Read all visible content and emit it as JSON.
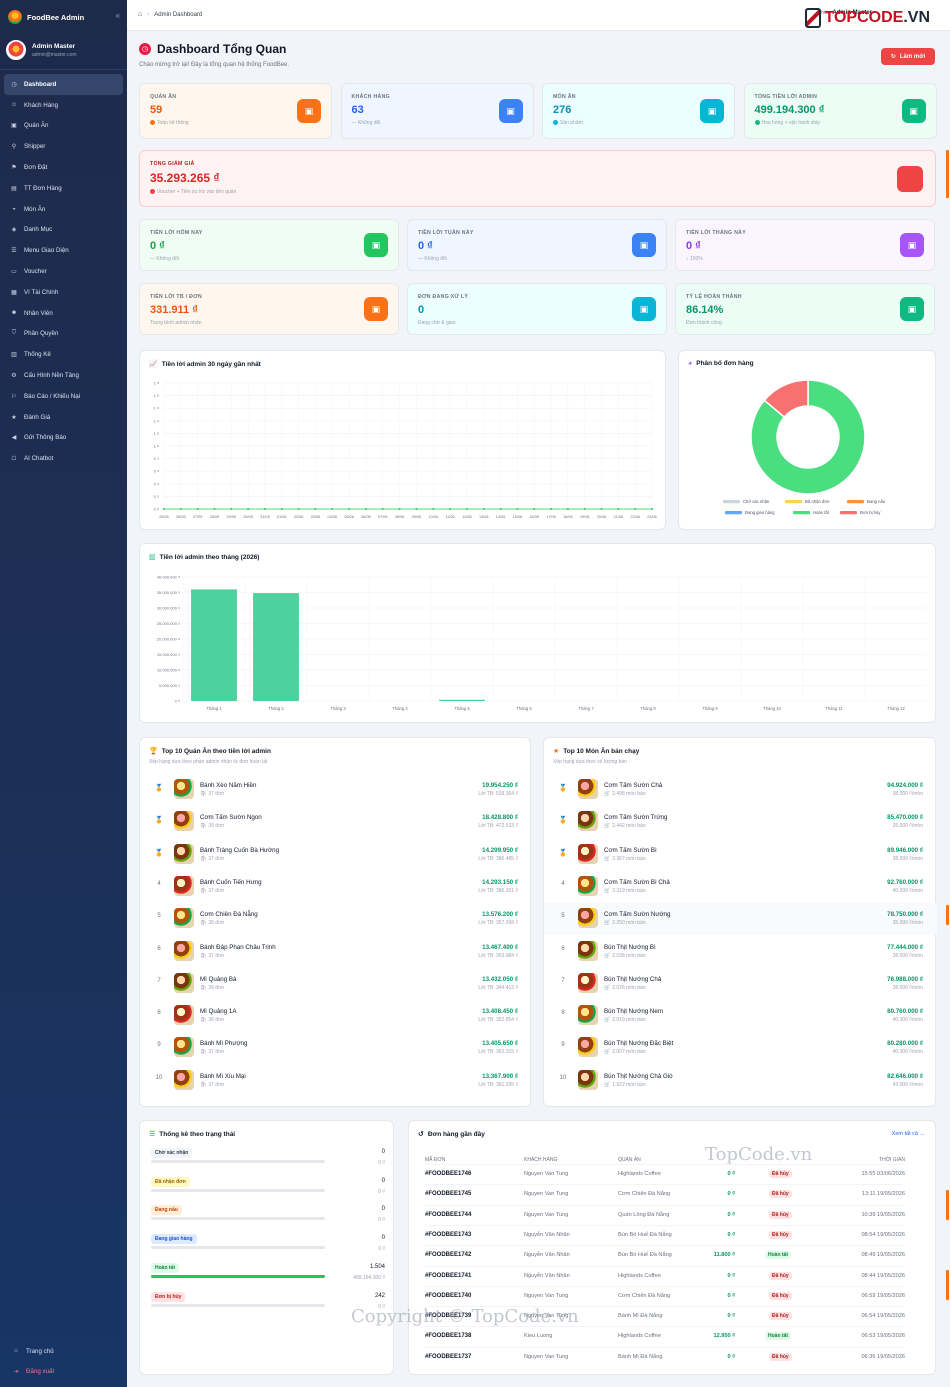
{
  "sidebar": {
    "brand": "FoodBee Admin",
    "collapse_icon": "«",
    "user": {
      "name": "Admin Master",
      "email": "admin@master.com"
    },
    "items": [
      {
        "label": "Dashboard",
        "icon": "gauge-icon",
        "active": true
      },
      {
        "label": "Khách Hàng",
        "icon": "users-icon"
      },
      {
        "label": "Quán Ăn",
        "icon": "store-icon"
      },
      {
        "label": "Shipper",
        "icon": "motorbike-icon"
      },
      {
        "label": "Đơn Đặt",
        "icon": "cart-icon"
      },
      {
        "label": "TT Đơn Hàng",
        "icon": "file-icon"
      },
      {
        "label": "Món Ăn",
        "icon": "bowl-icon"
      },
      {
        "label": "Danh Mục",
        "icon": "layers-icon"
      },
      {
        "label": "Menu Giao Diện",
        "icon": "menu-icon"
      },
      {
        "label": "Voucher",
        "icon": "ticket-icon"
      },
      {
        "label": "Ví Tài Chính",
        "icon": "wallet-icon"
      },
      {
        "label": "Nhân Viên",
        "icon": "user-icon"
      },
      {
        "label": "Phân Quyền",
        "icon": "shield-icon"
      },
      {
        "label": "Thống Kê",
        "icon": "chart-icon"
      },
      {
        "label": "Cấu Hình Nền Tảng",
        "icon": "gears-icon"
      },
      {
        "label": "Báo Cáo / Khiếu Nại",
        "icon": "flag-icon"
      },
      {
        "label": "Đánh Giá",
        "icon": "star-icon"
      },
      {
        "label": "Gửi Thông Báo",
        "icon": "megaphone-icon"
      },
      {
        "label": "AI Chatbot",
        "icon": "robot-icon"
      }
    ],
    "home": "Trang chủ",
    "logout": "Đăng xuất"
  },
  "topbar": {
    "breadcrumb": "Admin Dashboard",
    "user_greeting": "Xin chào,",
    "user_name": "Admin Master",
    "watermark_logo_a": "TOPCODE",
    "watermark_logo_b": ".VN"
  },
  "header": {
    "title": "Dashboard Tổng Quan",
    "subtitle": "Chào mừng trở lại! Đây là tổng quan hệ thống FoodBee.",
    "refresh": "Làm mới"
  },
  "stats_top": [
    {
      "label": "Quán Ăn",
      "value": "59",
      "sub": "Toàn hệ thống",
      "color": "#ea580c",
      "bg": "#fff7ed",
      "icon_bg": "#f97316",
      "dot": "#f97316",
      "icon": "store-icon"
    },
    {
      "label": "Khách Hàng",
      "value": "63",
      "sub": "— Không đổi",
      "color": "#2563eb",
      "bg": "#eff6ff",
      "icon_bg": "#3b82f6",
      "dot": "",
      "icon": "users-icon"
    },
    {
      "label": "Món Ăn",
      "value": "276",
      "sub": "Sản phẩm",
      "color": "#0891b2",
      "bg": "#ecfeff",
      "icon_bg": "#06b6d4",
      "dot": "#06b6d4",
      "icon": "bowl-icon"
    },
    {
      "label": "Tổng Tiền Lời Admin",
      "value": "499.194.300 ₫",
      "sub": "Hoa hồng + vận hành ship",
      "color": "#059669",
      "bg": "#ecfdf5",
      "icon_bg": "#10b981",
      "dot": "#10b981",
      "icon": "money-bag-icon"
    }
  ],
  "discount": {
    "label": "Tổng Giảm Giá",
    "value": "35.293.265 ₫",
    "sub": "Voucher + Tiền xu trừ vào tiền quán"
  },
  "profit_cards": [
    {
      "label": "Tiền Lời Hôm Nay",
      "value": "0 ₫",
      "sub": "— Không đổi",
      "color": "#16a34a",
      "bg": "#f0fdf4",
      "icon_bg": "#22c55e",
      "icon": "calendar-icon"
    },
    {
      "label": "Tiền Lời Tuần Này",
      "value": "0 ₫",
      "sub": "— Không đổi",
      "color": "#2563eb",
      "bg": "#eff6ff",
      "icon_bg": "#3b82f6",
      "icon": "calendar-week-icon"
    },
    {
      "label": "Tiền Lời Tháng Này",
      "value": "0 ₫",
      "sub": "↓ 100%",
      "color": "#9333ea",
      "bg": "#faf5ff",
      "icon_bg": "#a855f7",
      "icon": "calendar-month-icon"
    },
    {
      "label": "Tiền Lời TB / Đơn",
      "value": "331.911 ₫",
      "sub": "Trung bình admin nhận",
      "color": "#ea580c",
      "bg": "#fff7ed",
      "icon_bg": "#f97316",
      "icon": "receipt-icon"
    },
    {
      "label": "Đơn Đang Xử Lý",
      "value": "0",
      "sub": "Đang chờ & giao",
      "color": "#0891b2",
      "bg": "#ecfeff",
      "icon_bg": "#06b6d4",
      "icon": "hourglass-icon"
    },
    {
      "label": "Tỷ Lệ Hoàn Thành",
      "value": "86.14%",
      "sub": "Đơn thành công",
      "color": "#059669",
      "bg": "#ecfdf5",
      "icon_bg": "#10b981",
      "icon": "check-circle-icon"
    }
  ],
  "chart_daily": {
    "title": "Tiền lời admin 30 ngày gần nhất",
    "yticks": [
      "1 ₫",
      "1 ₫",
      "1 ₫",
      "1 ₫",
      "1 ₫",
      "1 ₫",
      "0 ₫",
      "0 ₫",
      "0 ₫",
      "0 ₫",
      "0 ₫"
    ],
    "x": [
      "25/05",
      "26/05",
      "27/05",
      "28/05",
      "29/05",
      "30/05",
      "31/05",
      "01/06",
      "02/06",
      "03/06",
      "04/06",
      "05/06",
      "06/06",
      "07/06",
      "08/06",
      "09/06",
      "10/06",
      "11/06",
      "12/06",
      "13/06",
      "14/06",
      "15/06",
      "16/06",
      "17/06",
      "18/06",
      "19/06",
      "20/06",
      "21/06",
      "22/06",
      "23/06"
    ]
  },
  "chart_data": [
    {
      "type": "line",
      "title": "Tiền lời admin 30 ngày gần nhất",
      "x": [
        "25/05",
        "26/05",
        "27/05",
        "28/05",
        "29/05",
        "30/05",
        "31/05",
        "01/06",
        "02/06",
        "03/06",
        "04/06",
        "05/06",
        "06/06",
        "07/06",
        "08/06",
        "09/06",
        "10/06",
        "11/06",
        "12/06",
        "13/06",
        "14/06",
        "15/06",
        "16/06",
        "17/06",
        "18/06",
        "19/06",
        "20/06",
        "21/06",
        "22/06",
        "23/06"
      ],
      "values": [
        0,
        0,
        0,
        0,
        0,
        0,
        0,
        0,
        0,
        0,
        0,
        0,
        0,
        0,
        0,
        0,
        0,
        0,
        0,
        0,
        0,
        0,
        0,
        0,
        0,
        0,
        0,
        0,
        0,
        0
      ],
      "ylim": [
        0,
        1
      ],
      "grid": true
    },
    {
      "type": "pie",
      "title": "Phân bố đơn hàng",
      "labels": [
        "Chờ xác nhận",
        "Đã nhận đơn",
        "Đang nấu",
        "Đang giao hàng",
        "Hoàn tất",
        "Đơn bị hủy"
      ],
      "values": [
        0,
        0,
        0,
        0,
        1504,
        242
      ],
      "colors": [
        "#cbd5e1",
        "#fcd34d",
        "#fb923c",
        "#60a5fa",
        "#4ade80",
        "#f87171"
      ],
      "legend": "bottom"
    },
    {
      "type": "bar",
      "title": "Tiền lời admin theo tháng (2026)",
      "categories": [
        "Tháng 1",
        "Tháng 2",
        "Tháng 3",
        "Tháng 4",
        "Tháng 5",
        "Tháng 6",
        "Tháng 7",
        "Tháng 8",
        "Tháng 9",
        "Tháng 10",
        "Tháng 11",
        "Tháng 12"
      ],
      "values": [
        36000000,
        34800000,
        0,
        0,
        400000,
        0,
        0,
        0,
        0,
        0,
        0,
        0
      ],
      "ylim": [
        0,
        40000000
      ],
      "yticks": [
        "0 ₫",
        "5.000.000 ₫",
        "10.000.000 ₫",
        "15.000.000 ₫",
        "20.000.000 ₫",
        "25.000.000 ₫",
        "30.000.000 ₫",
        "35.000.000 ₫",
        "40.000.000 ₫"
      ],
      "color": "#4ed19e",
      "grid": true
    }
  ],
  "pie": {
    "title": "Phân bố đơn hàng"
  },
  "monthly": {
    "title": "Tiền lời admin theo tháng (2026)"
  },
  "top_shops": {
    "title": "Top 10 Quán Ăn theo tiền lời admin",
    "subtitle": "Xếp hạng dựa theo phần admin nhận từ đơn hoàn tất",
    "items": [
      {
        "rank": "1",
        "name": "Bánh Xèo Năm Hiền",
        "meta": "37 đơn",
        "value": "19.954.250 ₫",
        "sub": "Lời TB: 539.304 ₫"
      },
      {
        "rank": "2",
        "name": "Cơm Tấm Sườn Ngon",
        "meta": "39 đơn",
        "value": "18.428.800 ₫",
        "sub": "Lời TB: 472.533 ₫"
      },
      {
        "rank": "3",
        "name": "Bánh Tráng Cuốn Bà Hường",
        "meta": "37 đơn",
        "value": "14.299.950 ₫",
        "sub": "Lời TB: 386.485 ₫"
      },
      {
        "rank": "4",
        "name": "Bánh Cuốn Tiến Hưng",
        "meta": "37 đơn",
        "value": "14.293.150 ₫",
        "sub": "Lời TB: 386.301 ₫"
      },
      {
        "rank": "5",
        "name": "Cơm Chiên Đà Nẵng",
        "meta": "38 đơn",
        "value": "13.576.200 ₫",
        "sub": "Lời TB: 357.268 ₫"
      },
      {
        "rank": "6",
        "name": "Bánh Đập Phan Châu Trinh",
        "meta": "37 đơn",
        "value": "13.467.400 ₫",
        "sub": "Lời TB: 363.984 ₫"
      },
      {
        "rank": "7",
        "name": "Mì Quảng Bà",
        "meta": "39 đơn",
        "value": "13.432.050 ₫",
        "sub": "Lời TB: 344.412 ₫"
      },
      {
        "rank": "8",
        "name": "Mì Quảng 1A",
        "meta": "38 đơn",
        "value": "13.408.450 ₫",
        "sub": "Lời TB: 352.854 ₫"
      },
      {
        "rank": "9",
        "name": "Bánh Mì Phượng",
        "meta": "37 đơn",
        "value": "13.405.650 ₫",
        "sub": "Lời TB: 362.315 ₫"
      },
      {
        "rank": "10",
        "name": "Bánh Mì Xíu Mại",
        "meta": "37 đơn",
        "value": "13.367.900 ₫",
        "sub": "Lời TB: 361.295 ₫"
      }
    ]
  },
  "top_dishes": {
    "title": "Top 10 Món Ăn bán chạy",
    "subtitle": "Xếp hạng dựa theo số lượng bán",
    "items": [
      {
        "rank": "1",
        "name": "Cơm Tấm Sườn Chả",
        "meta": "2.498 món bán",
        "value": "94.924.000 ₫",
        "sub": "38.000 ₫/món"
      },
      {
        "rank": "2",
        "name": "Cơm Tấm Sườn Trứng",
        "meta": "2.442 món bán",
        "value": "85.470.000 ₫",
        "sub": "35.000 ₫/món"
      },
      {
        "rank": "3",
        "name": "Cơm Tấm Sườn Bì",
        "meta": "2.367 món bán",
        "value": "89.946.000 ₫",
        "sub": "38.000 ₫/món"
      },
      {
        "rank": "4",
        "name": "Cơm Tấm Sườn Bì Chả",
        "meta": "2.319 món bán",
        "value": "92.760.000 ₫",
        "sub": "40.000 ₫/món"
      },
      {
        "rank": "5",
        "name": "Cơm Tấm Sườn Nướng",
        "meta": "2.250 món bán",
        "value": "78.750.000 ₫",
        "sub": "35.000 ₫/món"
      },
      {
        "rank": "6",
        "name": "Bún Thịt Nướng Bì",
        "meta": "2.038 món bán",
        "value": "77.444.000 ₫",
        "sub": "38.000 ₫/món"
      },
      {
        "rank": "7",
        "name": "Bún Thịt Nướng Chả",
        "meta": "2.026 món bán",
        "value": "76.988.000 ₫",
        "sub": "38.000 ₫/món"
      },
      {
        "rank": "8",
        "name": "Bún Thịt Nướng Nem",
        "meta": "2.019 món bán",
        "value": "80.760.000 ₫",
        "sub": "40.000 ₫/món"
      },
      {
        "rank": "9",
        "name": "Bún Thịt Nướng Đặc Biệt",
        "meta": "2.007 món bán",
        "value": "80.280.000 ₫",
        "sub": "40.000 ₫/món"
      },
      {
        "rank": "10",
        "name": "Bún Thịt Nướng Chả Giò",
        "meta": "1.922 món bán",
        "value": "82.646.000 ₫",
        "sub": "43.000 ₫/món"
      }
    ]
  },
  "status_stats": {
    "title": "Thống kê theo trạng thái",
    "items": [
      {
        "label": "Chờ xác nhận",
        "count": "0",
        "amount": "0 ₫",
        "fill": 0,
        "bg": "#f1f5f9",
        "fg": "#334155",
        "bar": "#94a3b8"
      },
      {
        "label": "Đã nhận đơn",
        "count": "0",
        "amount": "0 ₫",
        "fill": 0,
        "bg": "#fef9c3",
        "fg": "#a16207",
        "bar": "#facc15"
      },
      {
        "label": "Đang nấu",
        "count": "0",
        "amount": "0 ₫",
        "fill": 0,
        "bg": "#ffedd5",
        "fg": "#c2410c",
        "bar": "#fb923c"
      },
      {
        "label": "Đang giao hàng",
        "count": "0",
        "amount": "0 ₫",
        "fill": 0,
        "bg": "#dbeafe",
        "fg": "#1d4ed8",
        "bar": "#60a5fa"
      },
      {
        "label": "Hoàn tất",
        "count": "1.504",
        "amount": "499.194.300 ₫",
        "fill": 1,
        "bg": "#dcfce7",
        "fg": "#15803d",
        "bar": "#22c55e"
      },
      {
        "label": "Đơn bị hủy",
        "count": "242",
        "amount": "0 ₫",
        "fill": 0,
        "bg": "#fee2e2",
        "fg": "#b91c1c",
        "bar": "#f87171"
      }
    ]
  },
  "recent_orders": {
    "title": "Đơn hàng gần đây",
    "view_all": "Xem tất cả →",
    "columns": [
      "Mã đơn",
      "Khách hàng",
      "Quán ăn",
      "",
      "",
      "Thời gian"
    ],
    "rows": [
      {
        "code": "#FOODBEE1746",
        "customer": "Nguyen Van Tung",
        "shop": "Highlands Coffee",
        "total": "0 ₫",
        "status": "Đã hủy",
        "time": "15:55 03/06/2026"
      },
      {
        "code": "#FOODBEE1745",
        "customer": "Nguyen Van Tung",
        "shop": "Cơm Chiên Đà Nẵng",
        "total": "0 ₫",
        "status": "Đã hủy",
        "time": "13:11 19/05/2026"
      },
      {
        "code": "#FOODBEE1744",
        "customer": "Nguyen Van Tung",
        "shop": "Quán Lòng Đà Nẵng",
        "total": "0 ₫",
        "status": "Đã hủy",
        "time": "10:39 19/05/2026"
      },
      {
        "code": "#FOODBEE1743",
        "customer": "Nguyễn Văn Nhân",
        "shop": "Bún Bò Huế Đà Nẵng",
        "total": "0 ₫",
        "status": "Đã hủy",
        "time": "08:54 19/05/2026"
      },
      {
        "code": "#FOODBEE1742",
        "customer": "Nguyễn Văn Nhân",
        "shop": "Bún Bò Huế Đà Nẵng",
        "total": "11.800 ₫",
        "status": "Hoàn tất",
        "time": "08:49 19/05/2026"
      },
      {
        "code": "#FOODBEE1741",
        "customer": "Nguyễn Văn Nhân",
        "shop": "Highlands Coffee",
        "total": "0 ₫",
        "status": "Đã hủy",
        "time": "08:44 19/05/2026"
      },
      {
        "code": "#FOODBEE1740",
        "customer": "Nguyen Van Tung",
        "shop": "Cơm Chiên Đà Nẵng",
        "total": "0 ₫",
        "status": "Đã hủy",
        "time": "06:59 19/05/2026"
      },
      {
        "code": "#FOODBEE1739",
        "customer": "Nguyen Van Tung",
        "shop": "Bánh Mì Đà Nẵng",
        "total": "0 ₫",
        "status": "Đã hủy",
        "time": "06:54 19/05/2026"
      },
      {
        "code": "#FOODBEE1738",
        "customer": "Kieu Luong",
        "shop": "Highlands Coffee",
        "total": "12.950 ₫",
        "status": "Hoàn tất",
        "time": "06:53 19/05/2026"
      },
      {
        "code": "#FOODBEE1737",
        "customer": "Nguyen Van Tung",
        "shop": "Bánh Mì Đà Nẵng",
        "total": "0 ₫",
        "status": "Đã hủy",
        "time": "06:35 19/05/2026"
      }
    ]
  },
  "watermarks": {
    "a": "TopCode.vn",
    "b": "Copyright © TopCode.vn"
  }
}
